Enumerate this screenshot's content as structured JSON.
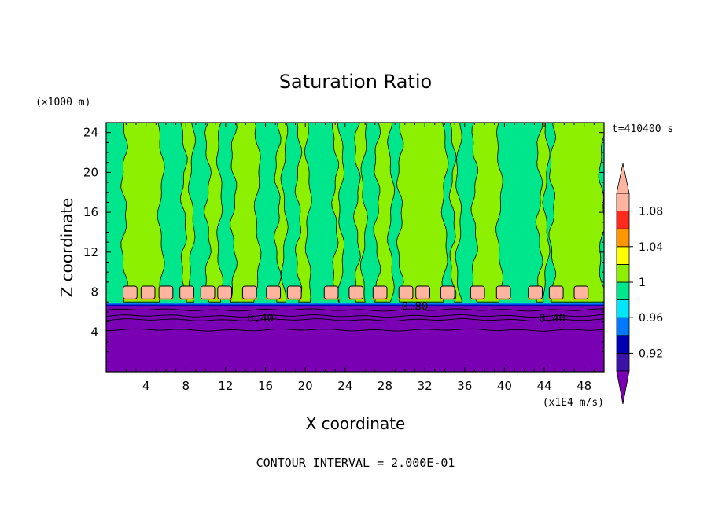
{
  "chart_data": {
    "type": "heatmap",
    "title": "Saturation Ratio",
    "xlabel": "X coordinate",
    "ylabel": "Z coordinate",
    "x_unit": "(x1E4 m/s)",
    "y_unit": "(×1000 m)",
    "time_label": "t=410400 s",
    "footer": "CONTOUR INTERVAL = 2.000E-01",
    "xlim": [
      0,
      50
    ],
    "ylim": [
      0,
      25
    ],
    "x_ticks": [
      4,
      8,
      12,
      16,
      20,
      24,
      28,
      32,
      36,
      40,
      44,
      48
    ],
    "y_ticks": [
      4,
      8,
      12,
      16,
      20,
      24
    ],
    "colorbar": {
      "levels": [
        0.9,
        0.92,
        0.94,
        0.96,
        0.98,
        1.0,
        1.02,
        1.04,
        1.06,
        1.08,
        1.1
      ],
      "tick_labels": [
        "0.92",
        "0.96",
        "1",
        "1.04",
        "1.08"
      ],
      "colors": [
        "#7a00b4",
        "#3a14a8",
        "#0000b4",
        "#0078ff",
        "#00e6ff",
        "#00e68c",
        "#8cf000",
        "#ffff00",
        "#ff9600",
        "#ff2a1e",
        "#ffb4a0",
        "#ffb4a0"
      ]
    },
    "contour_labels": [
      {
        "text": "0.40",
        "x": 15.5,
        "y": 5.4
      },
      {
        "text": "0.40",
        "x": 44.8,
        "y": 5.4
      },
      {
        "text": "0.80",
        "x": 31.0,
        "y": 6.6
      }
    ],
    "regions": {
      "lower_layer_top_z": 6.7,
      "upper_background": "near 1 (0.98-1.00)",
      "vertical_plumes_x": [
        [
          1.8,
          5.5
        ],
        [
          7.8,
          8.6
        ],
        [
          10.2,
          11.4
        ],
        [
          12.8,
          15.2
        ],
        [
          17.2,
          17.9
        ],
        [
          19.3,
          20.3
        ],
        [
          23.0,
          23.6
        ],
        [
          25.2,
          25.9
        ],
        [
          27.2,
          28.6
        ],
        [
          29.5,
          34.0
        ],
        [
          34.8,
          35.4
        ],
        [
          37.0,
          39.5
        ],
        [
          43.5,
          44.2
        ],
        [
          44.8,
          49.8
        ]
      ],
      "supersaturated_cells_x": [
        2.4,
        4.2,
        6.0,
        8.1,
        10.2,
        11.9,
        14.4,
        16.8,
        18.9,
        22.6,
        25.1,
        27.5,
        30.1,
        31.8,
        34.3,
        37.3,
        39.9,
        43.1,
        45.2,
        47.7
      ],
      "cell_base_z": 7.3,
      "cell_top_z": 8.6
    }
  }
}
